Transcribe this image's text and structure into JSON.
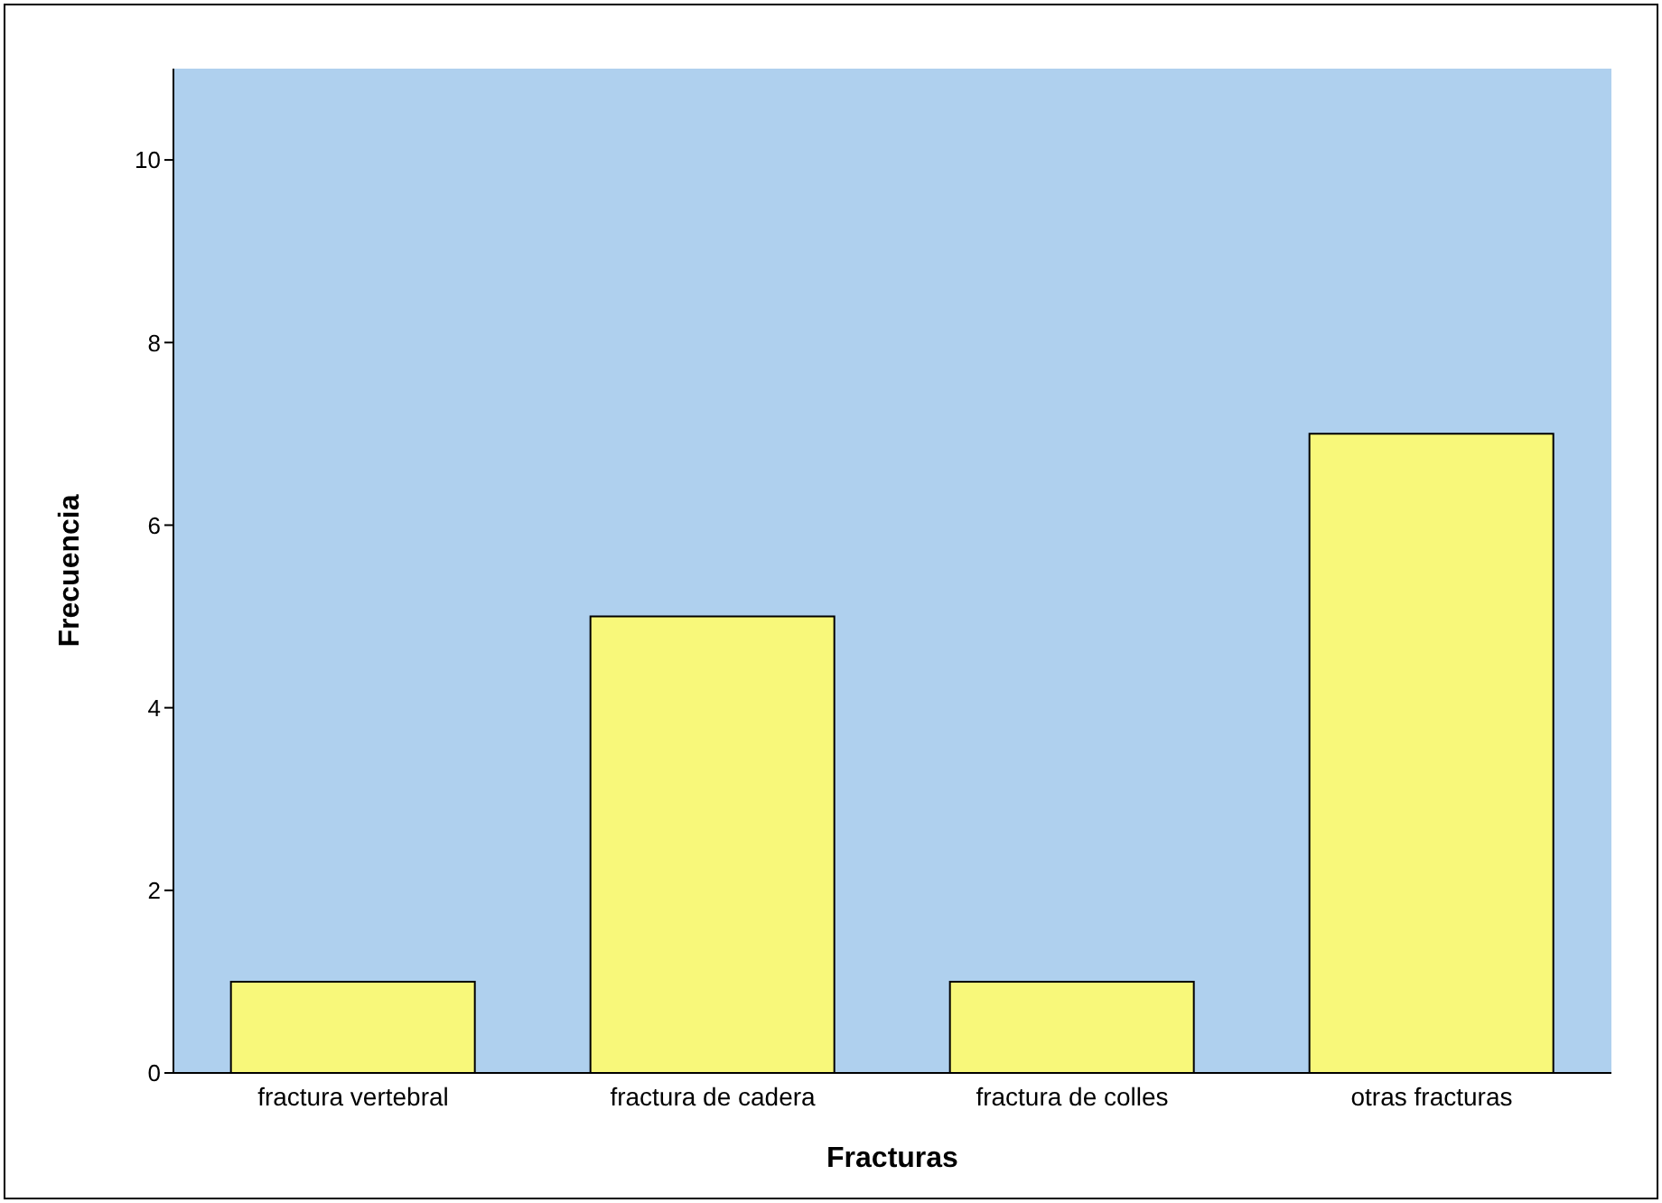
{
  "chart_data": {
    "type": "bar",
    "xlabel": "Fracturas",
    "ylabel": "Frecuencia",
    "categories": [
      "fractura vertebral",
      "fractura de cadera",
      "fractura de colles",
      "otras fracturas"
    ],
    "values": [
      1,
      5,
      1,
      7
    ],
    "color": "#f8f87a",
    "ylim": [
      0,
      11
    ],
    "yticks": [
      0,
      2,
      4,
      6,
      8,
      10
    ],
    "grid": false
  }
}
